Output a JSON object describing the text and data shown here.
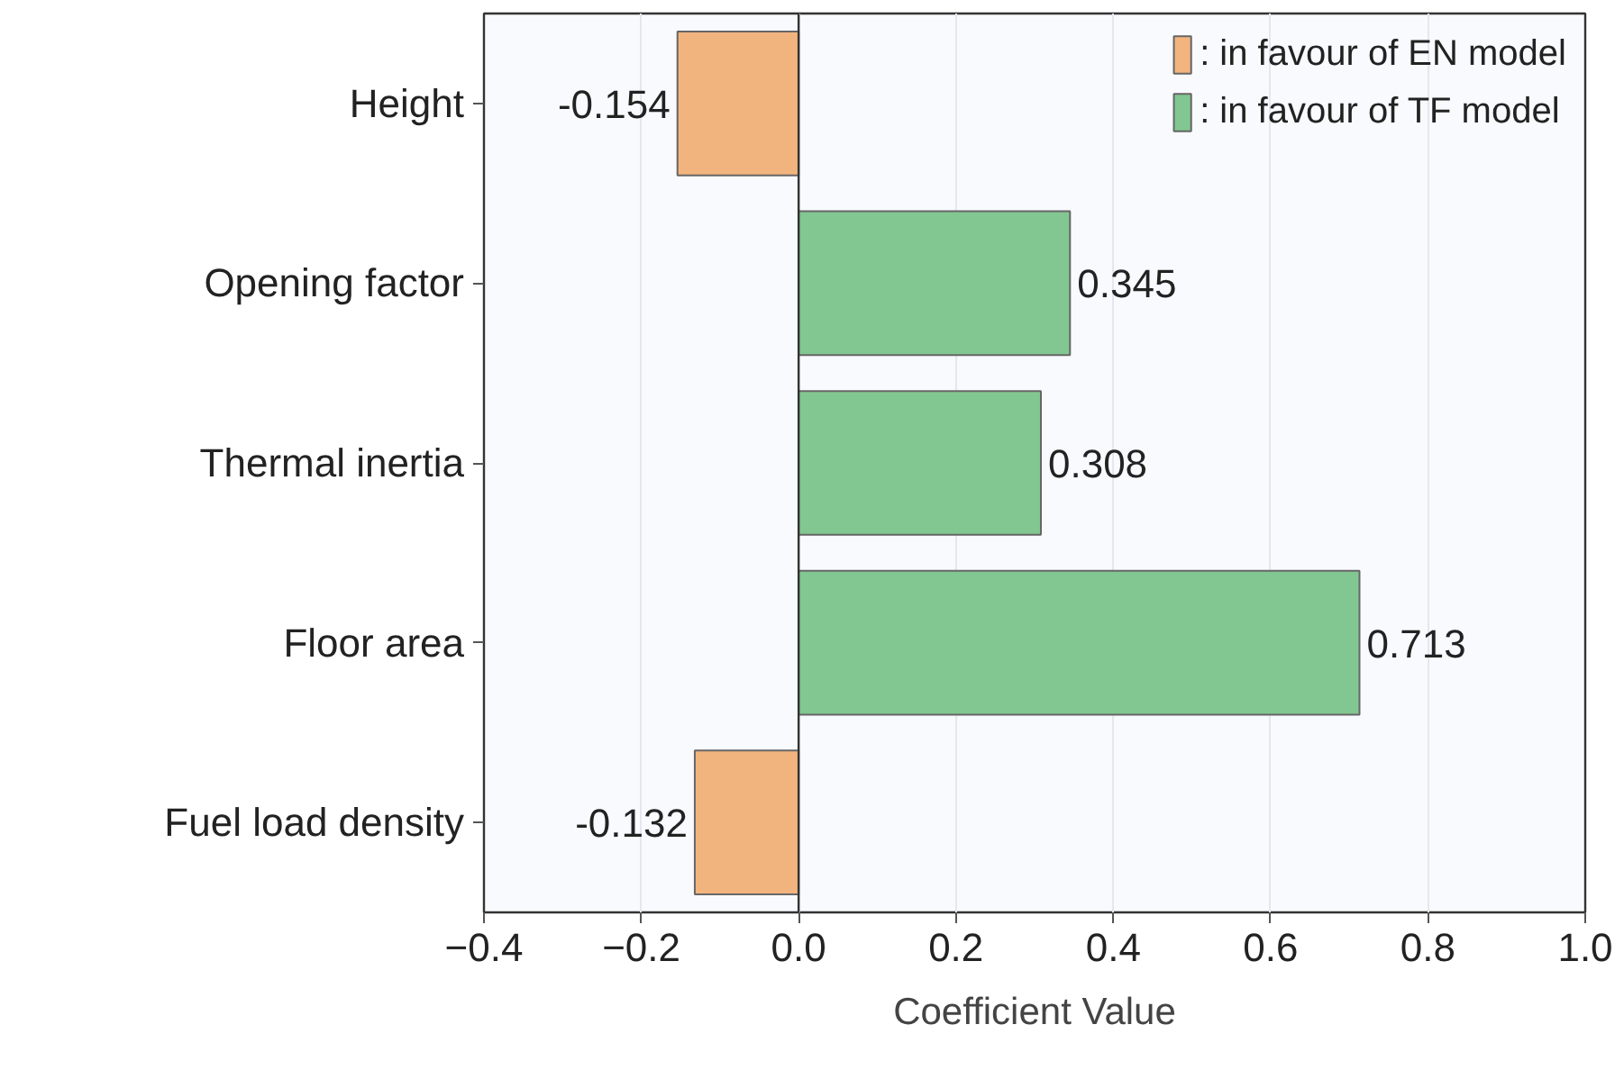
{
  "chart_data": {
    "type": "bar",
    "orientation": "horizontal",
    "xlabel": "Coefficient Value",
    "categories": [
      "Height",
      "Opening factor",
      "Thermal inertia",
      "Floor area",
      "Fuel load density"
    ],
    "series": [
      {
        "name": ": in favour of EN model",
        "color": "#f2b47e",
        "values": [
          -0.154,
          null,
          null,
          null,
          -0.132
        ]
      },
      {
        "name": ": in favour of TF model",
        "color": "#82c791",
        "values": [
          null,
          0.345,
          0.308,
          0.713,
          null
        ]
      }
    ],
    "xlim": [
      -0.4,
      1.0
    ],
    "xticks": [
      {
        "value": -0.4,
        "label": "−0.4"
      },
      {
        "value": -0.2,
        "label": "−0.2"
      },
      {
        "value": 0,
        "label": "0.0"
      },
      0.2,
      0.4,
      0.6,
      0.8,
      {
        "value": 1,
        "label": "1.0"
      }
    ],
    "ref_lines": [
      {
        "axis": "x",
        "value": 0,
        "color": "#333333"
      }
    ],
    "data_labels": true,
    "grid": "x",
    "legend": "top right"
  }
}
